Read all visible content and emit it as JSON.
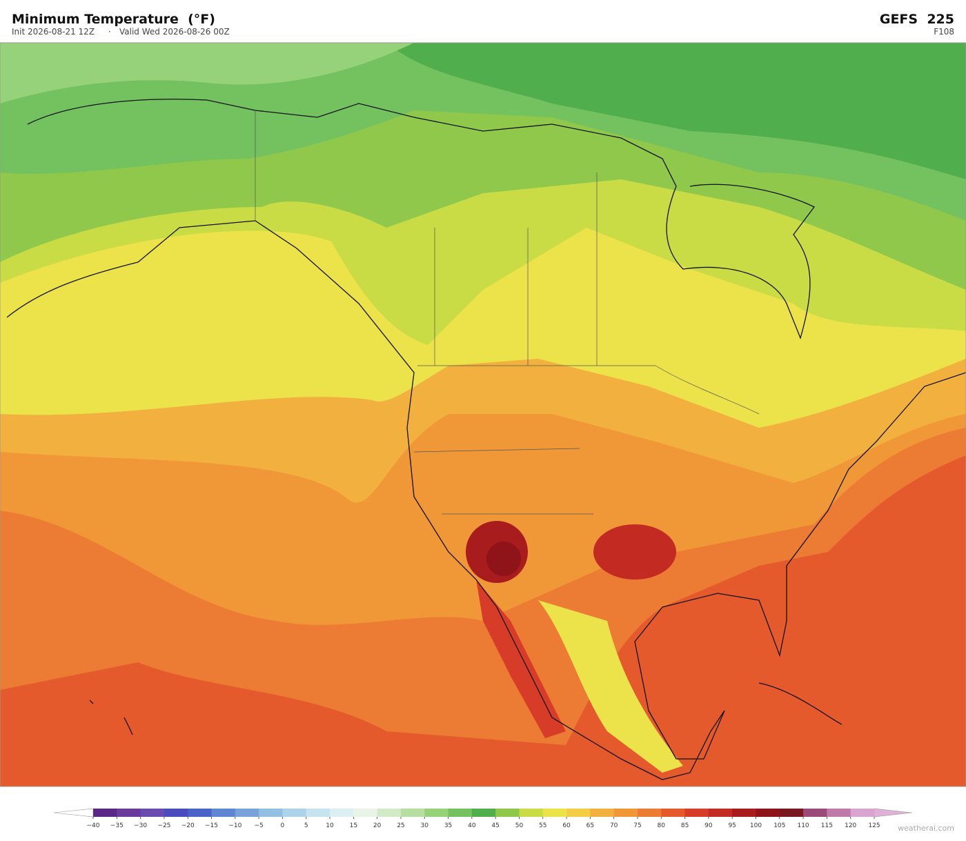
{
  "header": {
    "title": "Minimum Temperature  (°F)",
    "init": "Init 2026-08-21 12Z",
    "separator": "·",
    "valid": "Valid Wed 2026-08-26 00Z",
    "model": "GEFS  225",
    "forecast_hour": "F108"
  },
  "colorbar": {
    "ticks": [
      {
        "value": -40,
        "label": "−40"
      },
      {
        "value": -35,
        "label": "−35"
      },
      {
        "value": -30,
        "label": "−30"
      },
      {
        "value": -25,
        "label": "−25"
      },
      {
        "value": -20,
        "label": "−20"
      },
      {
        "value": -15,
        "label": "−15"
      },
      {
        "value": -10,
        "label": "−10"
      },
      {
        "value": -5,
        "label": "−5"
      },
      0,
      5,
      10,
      15,
      20,
      25,
      30,
      35,
      40,
      45,
      50,
      55,
      60,
      65,
      70,
      75,
      80,
      85,
      90,
      95,
      100,
      105,
      110,
      115,
      120,
      125
    ],
    "colors": [
      "#5a2787",
      "#6a3a9a",
      "#6a4cb0",
      "#4a4cbe",
      "#4a63c8",
      "#5f86d1",
      "#78a3d8",
      "#93bfe2",
      "#acd3ea",
      "#c6e4f0",
      "#dcf0f4",
      "#e8f5e6",
      "#d2ebc6",
      "#b6df9f",
      "#96d27a",
      "#74c160",
      "#50ae4c",
      "#8fc84a",
      "#c9dc45",
      "#ece24a",
      "#f4cc45",
      "#f2b13f",
      "#f09838",
      "#ec7c33",
      "#e55a2c",
      "#d63c27",
      "#c22a22",
      "#a81c1e",
      "#8e1419",
      "#7a1820",
      "#9b4a7a",
      "#c07aaa",
      "#d9a4cf"
    ],
    "under_color": "#ffffff",
    "over_color": "#e0b0d8"
  },
  "watermark": "weatherai.com"
}
